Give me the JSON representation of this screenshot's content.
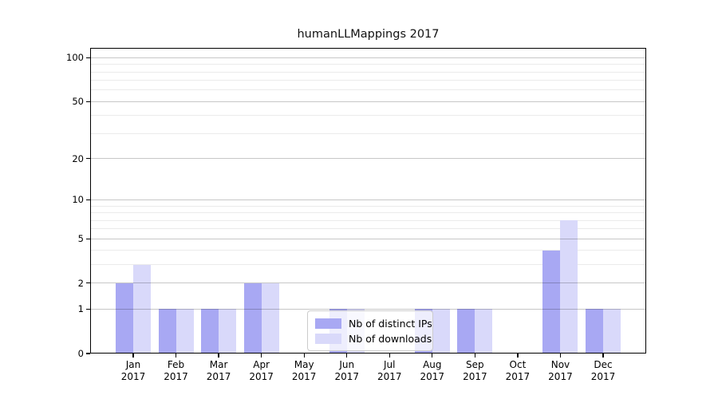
{
  "title": "humanLLMappings 2017",
  "chart_data": {
    "type": "bar",
    "title": "humanLLMappings 2017",
    "categories": [
      {
        "month": "Jan",
        "year": "2017"
      },
      {
        "month": "Feb",
        "year": "2017"
      },
      {
        "month": "Mar",
        "year": "2017"
      },
      {
        "month": "Apr",
        "year": "2017"
      },
      {
        "month": "May",
        "year": "2017"
      },
      {
        "month": "Jun",
        "year": "2017"
      },
      {
        "month": "Jul",
        "year": "2017"
      },
      {
        "month": "Aug",
        "year": "2017"
      },
      {
        "month": "Sep",
        "year": "2017"
      },
      {
        "month": "Oct",
        "year": "2017"
      },
      {
        "month": "Nov",
        "year": "2017"
      },
      {
        "month": "Dec",
        "year": "2017"
      }
    ],
    "series": [
      {
        "name": "Nb of distinct IPs",
        "color": "#a8a8f3",
        "values": [
          2,
          1,
          1,
          2,
          0,
          1,
          0,
          1,
          1,
          0,
          4,
          1
        ]
      },
      {
        "name": "Nb of downloads",
        "color": "#d9d9fa",
        "values": [
          3,
          1,
          1,
          2,
          0,
          1,
          0,
          1,
          1,
          0,
          7,
          1
        ]
      }
    ],
    "yscale": "log1p",
    "ylim": [
      0,
      117
    ],
    "y_major_ticks": [
      100,
      50,
      20,
      10,
      5,
      2,
      1,
      0
    ],
    "y_minor_ticks": [
      3,
      4,
      6,
      7,
      8,
      9,
      30,
      40,
      60,
      70,
      80,
      90
    ],
    "xlabel": "",
    "ylabel": "",
    "grid": true,
    "legend_position": "lower center"
  }
}
